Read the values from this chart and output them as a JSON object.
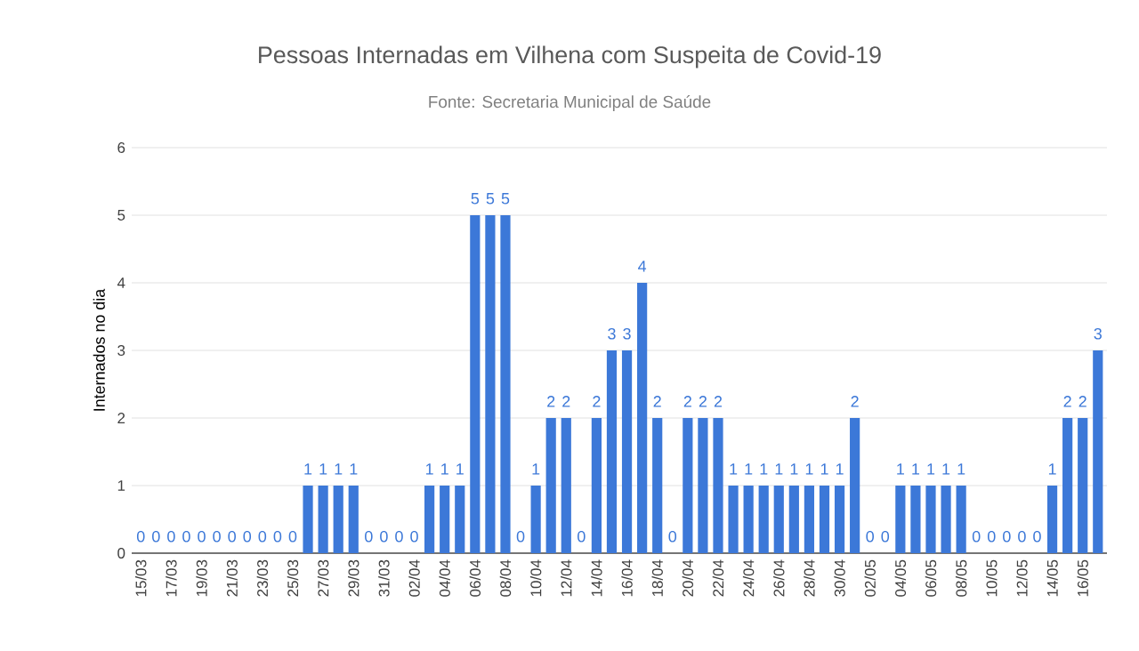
{
  "chart_data": {
    "type": "bar",
    "title": "Pessoas Internadas em Vilhena com Suspeita de Covid-19",
    "subtitle": "Fonte: Secretaria Municipal de Saúde",
    "ylabel": "Internados no dia",
    "categories": [
      "15/03",
      null,
      "17/03",
      null,
      "19/03",
      null,
      "21/03",
      null,
      "23/03",
      null,
      "25/03",
      null,
      "27/03",
      null,
      "29/03",
      null,
      "31/03",
      null,
      "02/04",
      null,
      "04/04",
      null,
      "06/04",
      null,
      "08/04",
      null,
      "10/04",
      null,
      "12/04",
      null,
      "14/04",
      null,
      "16/04",
      null,
      "18/04",
      null,
      "20/04",
      null,
      "22/04",
      null,
      "24/04",
      null,
      "26/04",
      null,
      "28/04",
      null,
      "30/04",
      null,
      "02/05",
      null,
      "04/05",
      null,
      "06/05",
      null,
      "08/05",
      null,
      "10/05",
      null,
      "12/05",
      null,
      "14/05",
      null,
      "16/05",
      null
    ],
    "values": [
      0,
      0,
      0,
      0,
      0,
      0,
      0,
      0,
      0,
      0,
      0,
      1,
      1,
      1,
      1,
      0,
      0,
      0,
      0,
      1,
      1,
      1,
      5,
      5,
      5,
      0,
      1,
      2,
      2,
      0,
      2,
      3,
      3,
      4,
      2,
      0,
      2,
      2,
      2,
      1,
      1,
      1,
      1,
      1,
      1,
      1,
      1,
      2,
      0,
      0,
      1,
      1,
      1,
      1,
      1,
      0,
      0,
      0,
      0,
      0,
      1,
      2,
      2,
      3
    ],
    "color": "#3c78d8",
    "ylim": [
      0,
      6
    ],
    "yticks": [
      0,
      1,
      2,
      3,
      4,
      5,
      6
    ],
    "grid": "y",
    "data_labels": true
  }
}
